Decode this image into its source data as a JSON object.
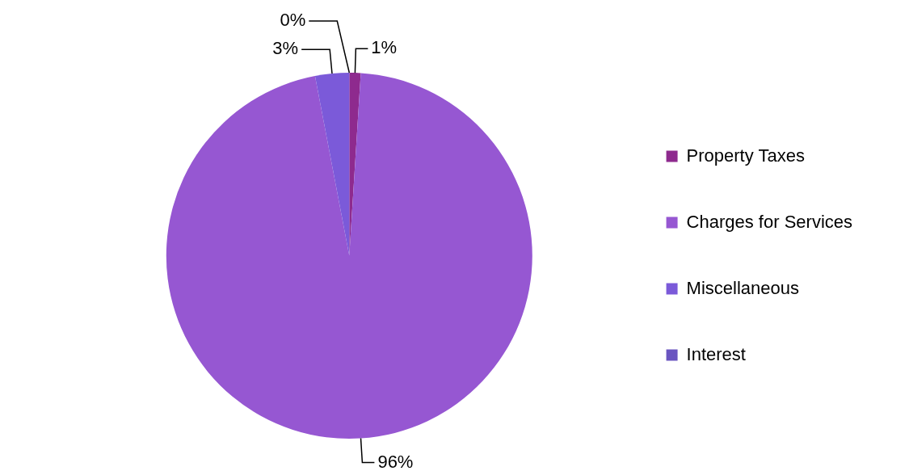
{
  "chart_data": {
    "type": "pie",
    "categories": [
      "Property Taxes",
      "Charges for Services",
      "Miscellaneous",
      "Interest"
    ],
    "values": [
      1,
      96,
      3,
      0
    ],
    "value_labels": [
      "1%",
      "96%",
      "3%",
      "0%"
    ],
    "colors": [
      "#8e2a8e",
      "#9657d2",
      "#7b5ad9",
      "#6a55c0"
    ],
    "legend": "right"
  }
}
